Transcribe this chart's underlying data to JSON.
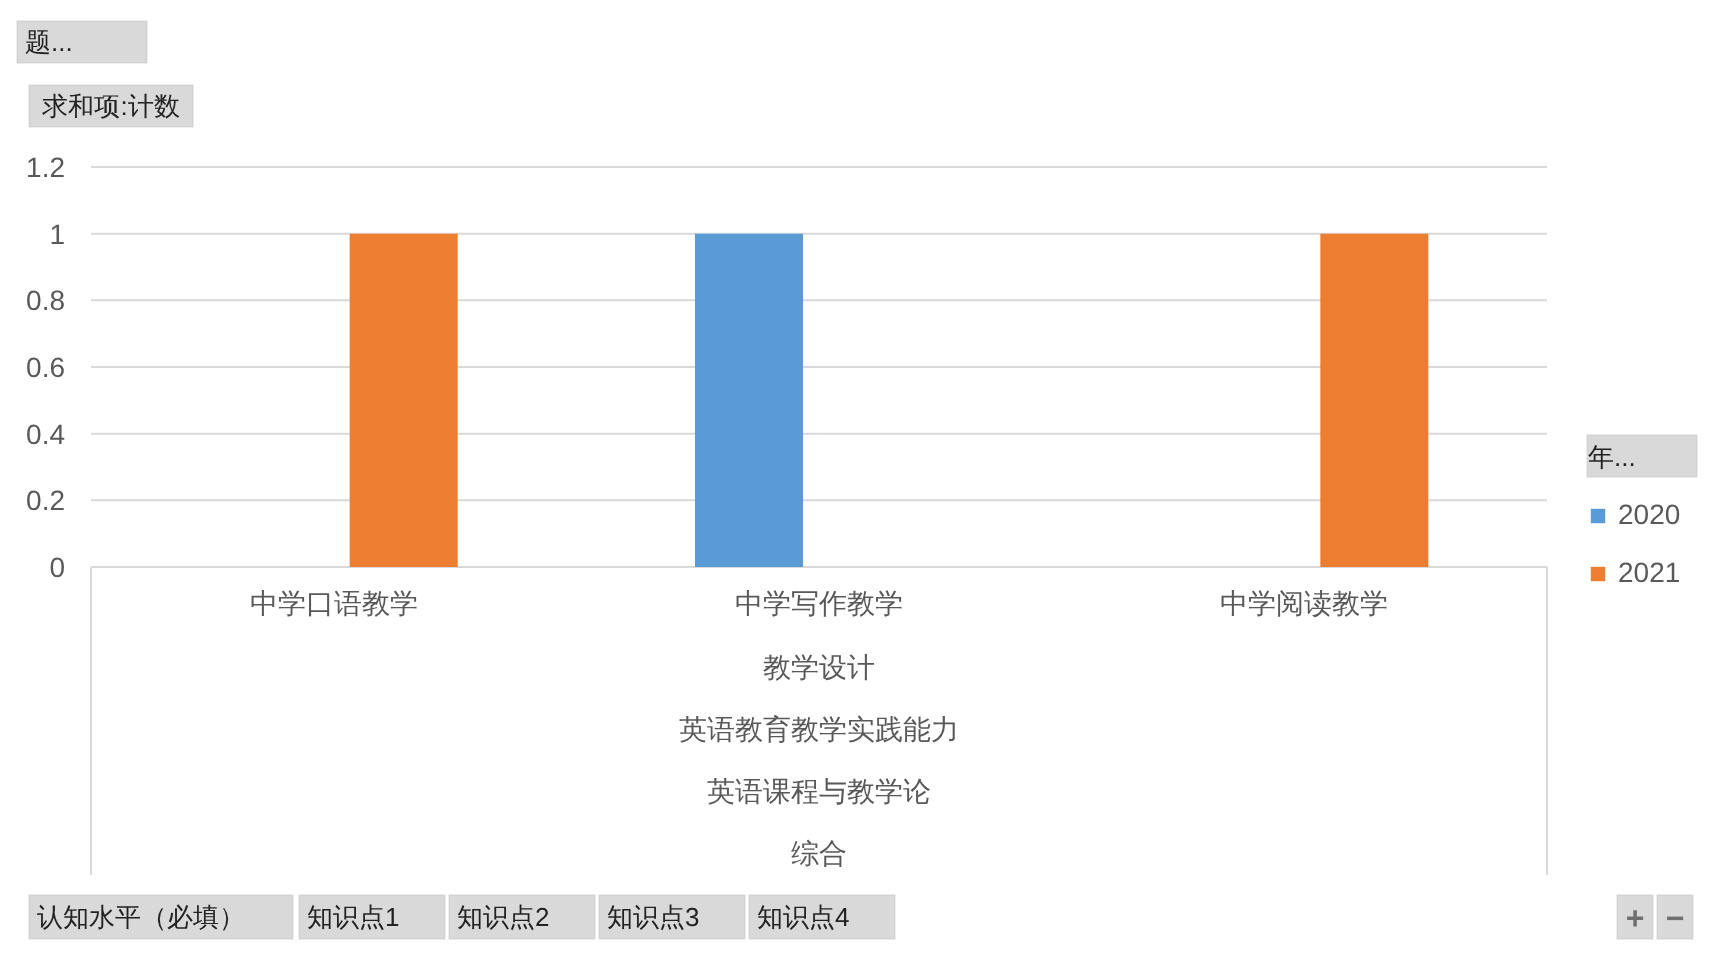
{
  "chart_data": {
    "type": "bar",
    "categories": [
      "中学口语教学",
      "中学写作教学",
      "中学阅读教学"
    ],
    "series": [
      {
        "name": "2020",
        "color": "#5b9bd5",
        "values": [
          null,
          1,
          null
        ]
      },
      {
        "name": "2021",
        "color": "#ed7d31",
        "values": [
          1,
          null,
          1
        ]
      }
    ],
    "ylim": [
      0,
      1.2
    ],
    "yticks": [
      0,
      0.2,
      0.4,
      0.6,
      0.8,
      1,
      1.2
    ],
    "grid": "y",
    "legend": "right",
    "legend_title": "年...",
    "ylabel": "求和项:计数",
    "annotations": [
      "题...",
      "教学设计",
      "英语教育教学实践能力",
      "英语课程与教学论",
      "综合",
      "认知水平（必填）",
      "知识点1",
      "知识点2",
      "知识点3",
      "知识点4",
      "+",
      "−"
    ]
  }
}
